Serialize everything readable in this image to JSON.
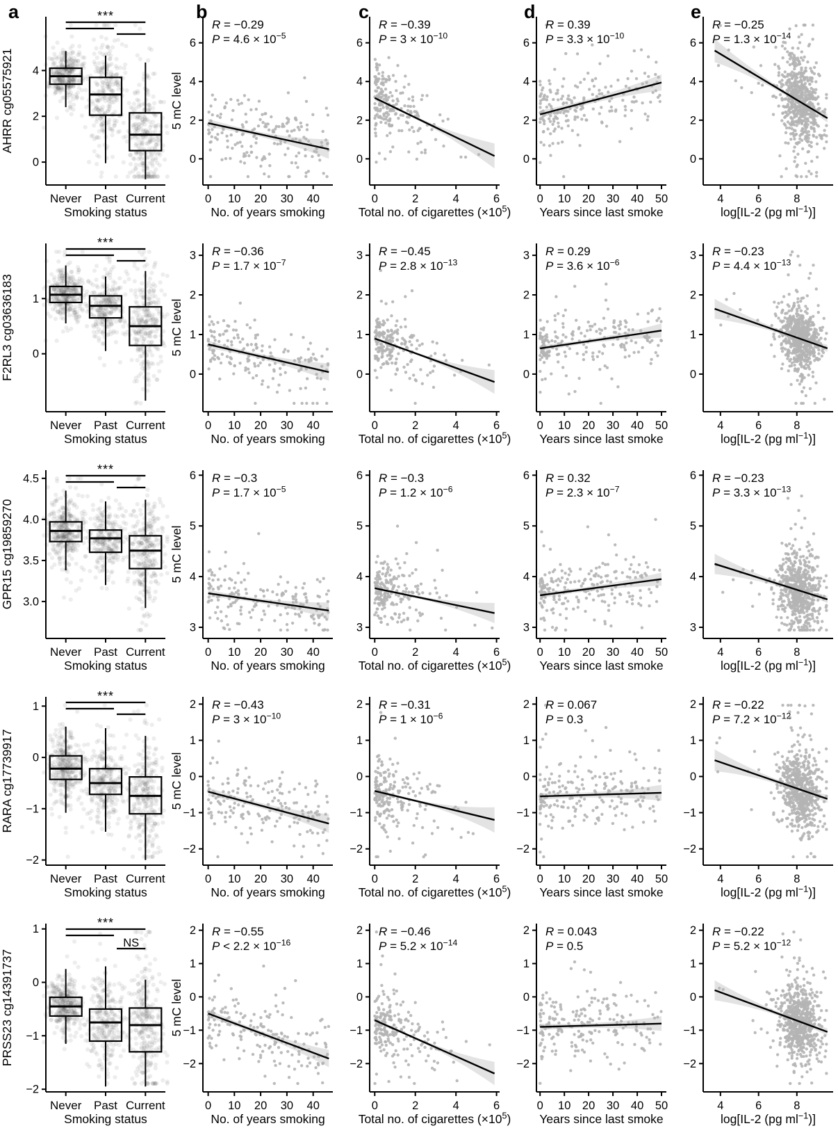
{
  "figure": {
    "panel_letters": [
      "a",
      "b",
      "c",
      "d",
      "e"
    ],
    "colors": {
      "axis": "#000000",
      "scatter_point": "#b4b4b4",
      "jitter_point": "#424242",
      "band": "#000000",
      "text": "#000000"
    }
  },
  "chart_data": {
    "type": "multi-panel-figure",
    "panel_columns": {
      "a": {
        "kind": "box+jitter",
        "xlabel": "Smoking status",
        "categories": [
          "Never",
          "Past",
          "Current"
        ]
      },
      "b": {
        "kind": "scatter",
        "xlabel": "No. of years smoking",
        "xticks": [
          0,
          10,
          20,
          30,
          40
        ],
        "xlim": [
          -2,
          47.5
        ],
        "ylabel": "5 mC level",
        "dist": "years",
        "n": 175
      },
      "c": {
        "kind": "scatter",
        "xlabel": "Total no. of cigarettes (×10^{5})",
        "xticks": [
          0,
          2,
          4,
          6
        ],
        "xlim": [
          -0.25,
          6.15
        ],
        "dist": "cigs",
        "n": 205
      },
      "d": {
        "kind": "scatter",
        "xlabel": "Years since last smoke",
        "xticks": [
          0,
          10,
          20,
          30,
          40,
          50
        ],
        "xlim": [
          -1.5,
          52
        ],
        "dist": "since",
        "n": 205
      },
      "e": {
        "kind": "scatter",
        "xlabel": "log[IL-2 (pg ml^{−1})]",
        "xticks": [
          4,
          6,
          8
        ],
        "xlim": [
          3.1,
          9.9
        ],
        "dist": "il2",
        "n": 620
      }
    },
    "rows": [
      {
        "gene": "AHRR cg05575921",
        "box": {
          "yticks": [
            0,
            2,
            4
          ],
          "ytick_labels": [
            "0",
            "2",
            "4"
          ],
          "ylim": [
            -1.0,
            6.35
          ],
          "significance": {
            "never_vs_current": "***",
            "never_vs_past": "",
            "past_vs_current": ""
          },
          "groups": [
            {
              "category": "Never",
              "whisker_low": 2.4,
              "q1": 3.4,
              "median": 3.75,
              "q3": 4.1,
              "whisker_high": 4.85,
              "n": 340
            },
            {
              "category": "Past",
              "whisker_low": -0.05,
              "q1": 2.05,
              "median": 2.95,
              "q3": 3.7,
              "whisker_high": 4.65,
              "n": 260
            },
            {
              "category": "Current",
              "whisker_low": -0.75,
              "q1": 0.5,
              "median": 1.2,
              "q3": 2.15,
              "whisker_high": 4.35,
              "n": 280
            }
          ]
        },
        "scatter_y": {
          "ticks": [
            0,
            2,
            4,
            6
          ],
          "labels": [
            "0",
            "2",
            "4",
            "6"
          ],
          "lim": [
            -1.35,
            7.35
          ]
        },
        "scatter": [
          {
            "col": "b",
            "R": "−0.29",
            "P": "= 4.6 × 10^{−5}",
            "trend": {
              "x0": 0,
              "y0": 1.85,
              "x1": 46,
              "y1": 0.5
            },
            "sigma": 1.05,
            "band": [
              0.22,
              0.14,
              0.5
            ]
          },
          {
            "col": "c",
            "R": "−0.39",
            "P": "= 3 × 10^{−10}",
            "trend": {
              "x0": 0,
              "y0": 3.15,
              "x1": 5.9,
              "y1": 0.15
            },
            "sigma": 0.95,
            "band": [
              0.14,
              0.12,
              0.65
            ]
          },
          {
            "col": "d",
            "R": "0.39",
            "P": "= 3.3 × 10^{−10}",
            "trend": {
              "x0": 0,
              "y0": 2.3,
              "x1": 50,
              "y1": 3.95
            },
            "sigma": 1.0,
            "band": [
              0.2,
              0.15,
              0.42
            ]
          },
          {
            "col": "e",
            "R": "−0.25",
            "P": "= 1.3 × 10^{−14}",
            "trend": {
              "x0": 3.7,
              "y0": 5.6,
              "x1": 9.6,
              "y1": 2.1
            },
            "sigma": 1.2,
            "band": [
              0.6,
              0.14,
              0.22
            ]
          }
        ]
      },
      {
        "gene": "F2RL3 cg03636183",
        "box": {
          "yticks": [
            0,
            1
          ],
          "ytick_labels": [
            "0",
            "1"
          ],
          "ylim": [
            -1.05,
            2.0
          ],
          "significance": {
            "never_vs_current": "***",
            "never_vs_past": "",
            "past_vs_current": ""
          },
          "groups": [
            {
              "category": "Never",
              "whisker_low": 0.55,
              "q1": 0.93,
              "median": 1.07,
              "q3": 1.22,
              "whisker_high": 1.6,
              "n": 340
            },
            {
              "category": "Past",
              "whisker_low": 0.05,
              "q1": 0.65,
              "median": 0.87,
              "q3": 1.05,
              "whisker_high": 1.4,
              "n": 260
            },
            {
              "category": "Current",
              "whisker_low": -0.85,
              "q1": 0.15,
              "median": 0.5,
              "q3": 0.85,
              "whisker_high": 1.5,
              "n": 280
            }
          ]
        },
        "scatter_y": {
          "ticks": [
            0,
            1,
            2,
            3
          ],
          "labels": [
            "0",
            "1",
            "2",
            "3"
          ],
          "lim": [
            -0.95,
            3.3
          ]
        },
        "scatter": [
          {
            "col": "b",
            "R": "−0.36",
            "P": "= 1.7 × 10^{−7}",
            "trend": {
              "x0": 0,
              "y0": 0.75,
              "x1": 46,
              "y1": 0.05
            },
            "sigma": 0.38,
            "band": [
              0.1,
              0.07,
              0.22
            ]
          },
          {
            "col": "c",
            "R": "−0.45",
            "P": "= 2.8 × 10^{−13}",
            "trend": {
              "x0": 0,
              "y0": 0.9,
              "x1": 5.9,
              "y1": -0.2
            },
            "sigma": 0.4,
            "band": [
              0.06,
              0.05,
              0.3
            ]
          },
          {
            "col": "d",
            "R": "0.29",
            "P": "= 3.6 × 10^{−6}",
            "trend": {
              "x0": 0,
              "y0": 0.65,
              "x1": 50,
              "y1": 1.1
            },
            "sigma": 0.38,
            "band": [
              0.08,
              0.06,
              0.18
            ]
          },
          {
            "col": "e",
            "R": "−0.23",
            "P": "= 4.4 × 10^{−13}",
            "trend": {
              "x0": 3.7,
              "y0": 1.65,
              "x1": 9.6,
              "y1": 0.65
            },
            "sigma": 0.45,
            "band": [
              0.25,
              0.06,
              0.09
            ]
          }
        ]
      },
      {
        "gene": "GPR15 cg19859270",
        "box": {
          "yticks": [
            3.0,
            3.5,
            4.0,
            4.5
          ],
          "ytick_labels": [
            "3.0",
            "3.5",
            "4.0",
            "4.5"
          ],
          "ylim": [
            2.55,
            4.6
          ],
          "significance": {
            "never_vs_current": "***",
            "never_vs_past": "",
            "past_vs_current": ""
          },
          "groups": [
            {
              "category": "Never",
              "whisker_low": 3.38,
              "q1": 3.73,
              "median": 3.86,
              "q3": 3.97,
              "whisker_high": 4.35,
              "n": 340
            },
            {
              "category": "Past",
              "whisker_low": 3.2,
              "q1": 3.6,
              "median": 3.77,
              "q3": 3.87,
              "whisker_high": 4.22,
              "n": 260
            },
            {
              "category": "Current",
              "whisker_low": 2.92,
              "q1": 3.4,
              "median": 3.62,
              "q3": 3.8,
              "whisker_high": 4.24,
              "n": 280
            }
          ]
        },
        "scatter_y": {
          "ticks": [
            3,
            4,
            5,
            6
          ],
          "labels": [
            "3",
            "4",
            "5",
            "6"
          ],
          "lim": [
            2.78,
            6.1
          ]
        },
        "scatter": [
          {
            "col": "b",
            "R": "−0.3",
            "P": "= 1.7 × 10^{−5}",
            "trend": {
              "x0": 0,
              "y0": 3.67,
              "x1": 46,
              "y1": 3.33
            },
            "sigma": 0.3,
            "band": [
              0.07,
              0.05,
              0.16
            ]
          },
          {
            "col": "c",
            "R": "−0.3",
            "P": "= 1.2 × 10^{−6}",
            "trend": {
              "x0": 0,
              "y0": 3.77,
              "x1": 5.9,
              "y1": 3.28
            },
            "sigma": 0.3,
            "band": [
              0.05,
              0.04,
              0.2
            ]
          },
          {
            "col": "d",
            "R": "0.32",
            "P": "= 2.3 × 10^{−7}",
            "trend": {
              "x0": 0,
              "y0": 3.63,
              "x1": 50,
              "y1": 3.95
            },
            "sigma": 0.3,
            "band": [
              0.06,
              0.05,
              0.13
            ]
          },
          {
            "col": "e",
            "R": "−0.23",
            "P": "= 3.3 × 10^{−13}",
            "trend": {
              "x0": 3.7,
              "y0": 4.25,
              "x1": 9.6,
              "y1": 3.55
            },
            "sigma": 0.4,
            "band": [
              0.2,
              0.05,
              0.07
            ]
          }
        ]
      },
      {
        "gene": "RARA cg17739917",
        "box": {
          "yticks": [
            -2,
            -1,
            0,
            1
          ],
          "ytick_labels": [
            "−2",
            "−1",
            "0",
            "1"
          ],
          "ylim": [
            -2.1,
            1.18
          ],
          "significance": {
            "never_vs_current": "***",
            "never_vs_past": "",
            "past_vs_current": ""
          },
          "groups": [
            {
              "category": "Never",
              "whisker_low": -1.08,
              "q1": -0.43,
              "median": -0.22,
              "q3": 0.03,
              "whisker_high": 0.6,
              "n": 340
            },
            {
              "category": "Past",
              "whisker_low": -1.45,
              "q1": -0.72,
              "median": -0.5,
              "q3": -0.22,
              "whisker_high": 0.57,
              "n": 260
            },
            {
              "category": "Current",
              "whisker_low": -2.0,
              "q1": -1.1,
              "median": -0.75,
              "q3": -0.38,
              "whisker_high": 0.42,
              "n": 280
            }
          ]
        },
        "scatter_y": {
          "ticks": [
            -2,
            -1,
            0,
            1,
            2
          ],
          "labels": [
            "−2",
            "−1",
            "0",
            "1",
            "2"
          ],
          "lim": [
            -2.45,
            2.2
          ]
        },
        "scatter": [
          {
            "col": "b",
            "R": "−0.43",
            "P": "= 3 × 10^{−10}",
            "trend": {
              "x0": 0,
              "y0": -0.42,
              "x1": 46,
              "y1": -1.3
            },
            "sigma": 0.52,
            "band": [
              0.12,
              0.08,
              0.26
            ]
          },
          {
            "col": "c",
            "R": "−0.31",
            "P": "= 1 × 10^{−6}",
            "trend": {
              "x0": 0,
              "y0": -0.4,
              "x1": 5.9,
              "y1": -1.2
            },
            "sigma": 0.5,
            "band": [
              0.08,
              0.06,
              0.35
            ]
          },
          {
            "col": "d",
            "R": "0.067",
            "P": "= 0.3",
            "trend": {
              "x0": 0,
              "y0": -0.55,
              "x1": 50,
              "y1": -0.45
            },
            "sigma": 0.5,
            "band": [
              0.1,
              0.08,
              0.22
            ]
          },
          {
            "col": "e",
            "R": "−0.22",
            "P": "= 7.2 × 10^{−12}",
            "trend": {
              "x0": 3.7,
              "y0": 0.45,
              "x1": 9.6,
              "y1": -0.62
            },
            "sigma": 0.58,
            "band": [
              0.3,
              0.07,
              0.11
            ]
          }
        ]
      },
      {
        "gene": "PRSS23 cg14391737",
        "box": {
          "yticks": [
            -2,
            -1,
            0,
            1
          ],
          "ytick_labels": [
            "−2",
            "−1",
            "0",
            "1"
          ],
          "ylim": [
            -2.05,
            1.1
          ],
          "significance": {
            "never_vs_current": "***",
            "never_vs_past": "",
            "past_vs_current": "NS"
          },
          "groups": [
            {
              "category": "Never",
              "whisker_low": -1.15,
              "q1": -0.63,
              "median": -0.45,
              "q3": -0.28,
              "whisker_high": 0.25,
              "n": 340
            },
            {
              "category": "Past",
              "whisker_low": -1.95,
              "q1": -1.1,
              "median": -0.75,
              "q3": -0.5,
              "whisker_high": 0.3,
              "n": 260
            },
            {
              "category": "Current",
              "whisker_low": -1.95,
              "q1": -1.3,
              "median": -0.8,
              "q3": -0.48,
              "whisker_high": 0.05,
              "n": 280
            }
          ]
        },
        "scatter_y": {
          "ticks": [
            -2,
            -1,
            0,
            1,
            2
          ],
          "labels": [
            "−2",
            "−1",
            "0",
            "1",
            "2"
          ],
          "lim": [
            -2.85,
            2.2
          ]
        },
        "scatter": [
          {
            "col": "b",
            "R": "−0.55",
            "P": "< 2.2 × 10^{−16}",
            "trend": {
              "x0": 0,
              "y0": -0.5,
              "x1": 46,
              "y1": -1.85
            },
            "sigma": 0.52,
            "band": [
              0.12,
              0.08,
              0.26
            ]
          },
          {
            "col": "c",
            "R": "−0.46",
            "P": "= 5.2 × 10^{−14}",
            "trend": {
              "x0": 0,
              "y0": -0.7,
              "x1": 5.9,
              "y1": -2.3
            },
            "sigma": 0.5,
            "band": [
              0.08,
              0.06,
              0.35
            ]
          },
          {
            "col": "d",
            "R": "0.043",
            "P": "= 0.5",
            "trend": {
              "x0": 0,
              "y0": -0.9,
              "x1": 50,
              "y1": -0.8
            },
            "sigma": 0.55,
            "band": [
              0.1,
              0.08,
              0.22
            ]
          },
          {
            "col": "e",
            "R": "−0.22",
            "P": "= 5.2 × 10^{−12}",
            "trend": {
              "x0": 3.7,
              "y0": 0.2,
              "x1": 9.6,
              "y1": -1.05
            },
            "sigma": 0.6,
            "band": [
              0.3,
              0.07,
              0.11
            ]
          }
        ]
      }
    ]
  }
}
